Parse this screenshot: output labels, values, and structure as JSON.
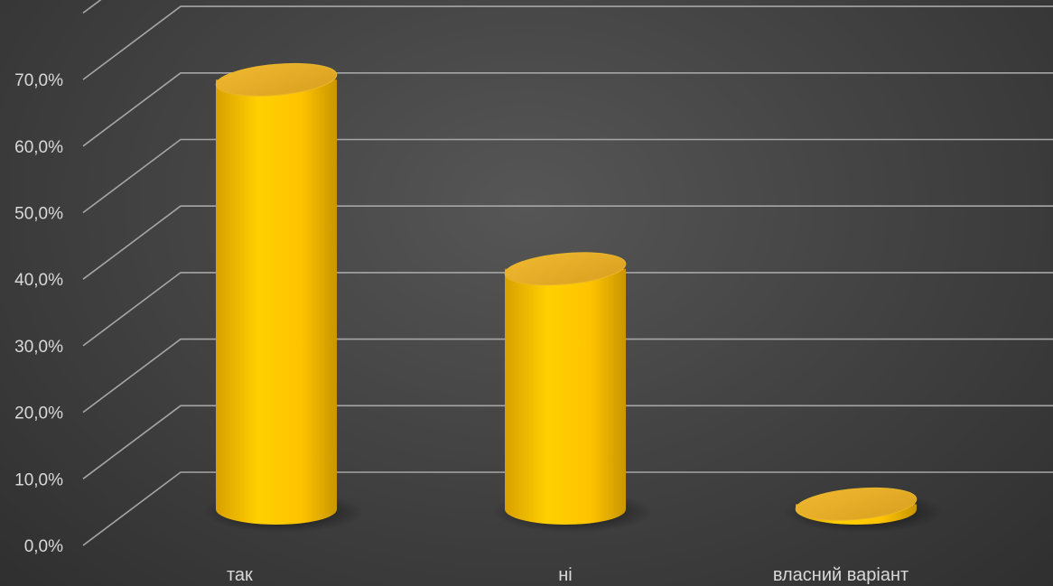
{
  "chart_data": {
    "type": "bar",
    "style": "3d-cylinder",
    "categories": [
      "так",
      "ні",
      "власний варіант"
    ],
    "series": [
      {
        "values": [
          67.0,
          37.5,
          0.8
        ]
      }
    ],
    "ylim": [
      0,
      80
    ],
    "y_ticks": [
      "0,0%",
      "10,0%",
      "20,0%",
      "30,0%",
      "40,0%",
      "50,0%",
      "60,0%",
      "70,0%"
    ],
    "grid": true,
    "legend": "none",
    "colors": {
      "bar": "#ffc000",
      "bar_light": "#ffd84d",
      "bar_dark": "#b88700",
      "background": "#444444",
      "grid": "#a6a6a6",
      "text": "#d9d9d9"
    }
  }
}
